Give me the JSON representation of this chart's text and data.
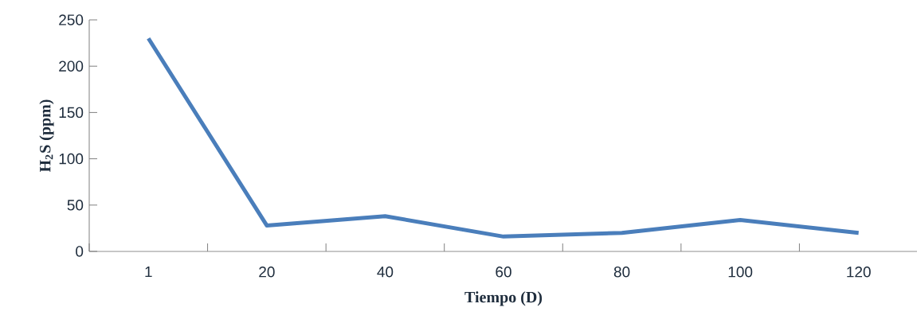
{
  "chart_data": {
    "type": "line",
    "xlabel": "Tiempo (D)",
    "ylabel": "H$_{2}$S (ppm)",
    "categories": [
      "1",
      "20",
      "40",
      "60",
      "80",
      "100",
      "120"
    ],
    "values": [
      230,
      28,
      38,
      16,
      20,
      34,
      20
    ],
    "color": "#4a7ebb",
    "ylim": [
      0,
      250
    ],
    "yticks": [
      0,
      50,
      100,
      150,
      200,
      250
    ],
    "grid": false,
    "marker": "none",
    "line_style": "solid"
  }
}
